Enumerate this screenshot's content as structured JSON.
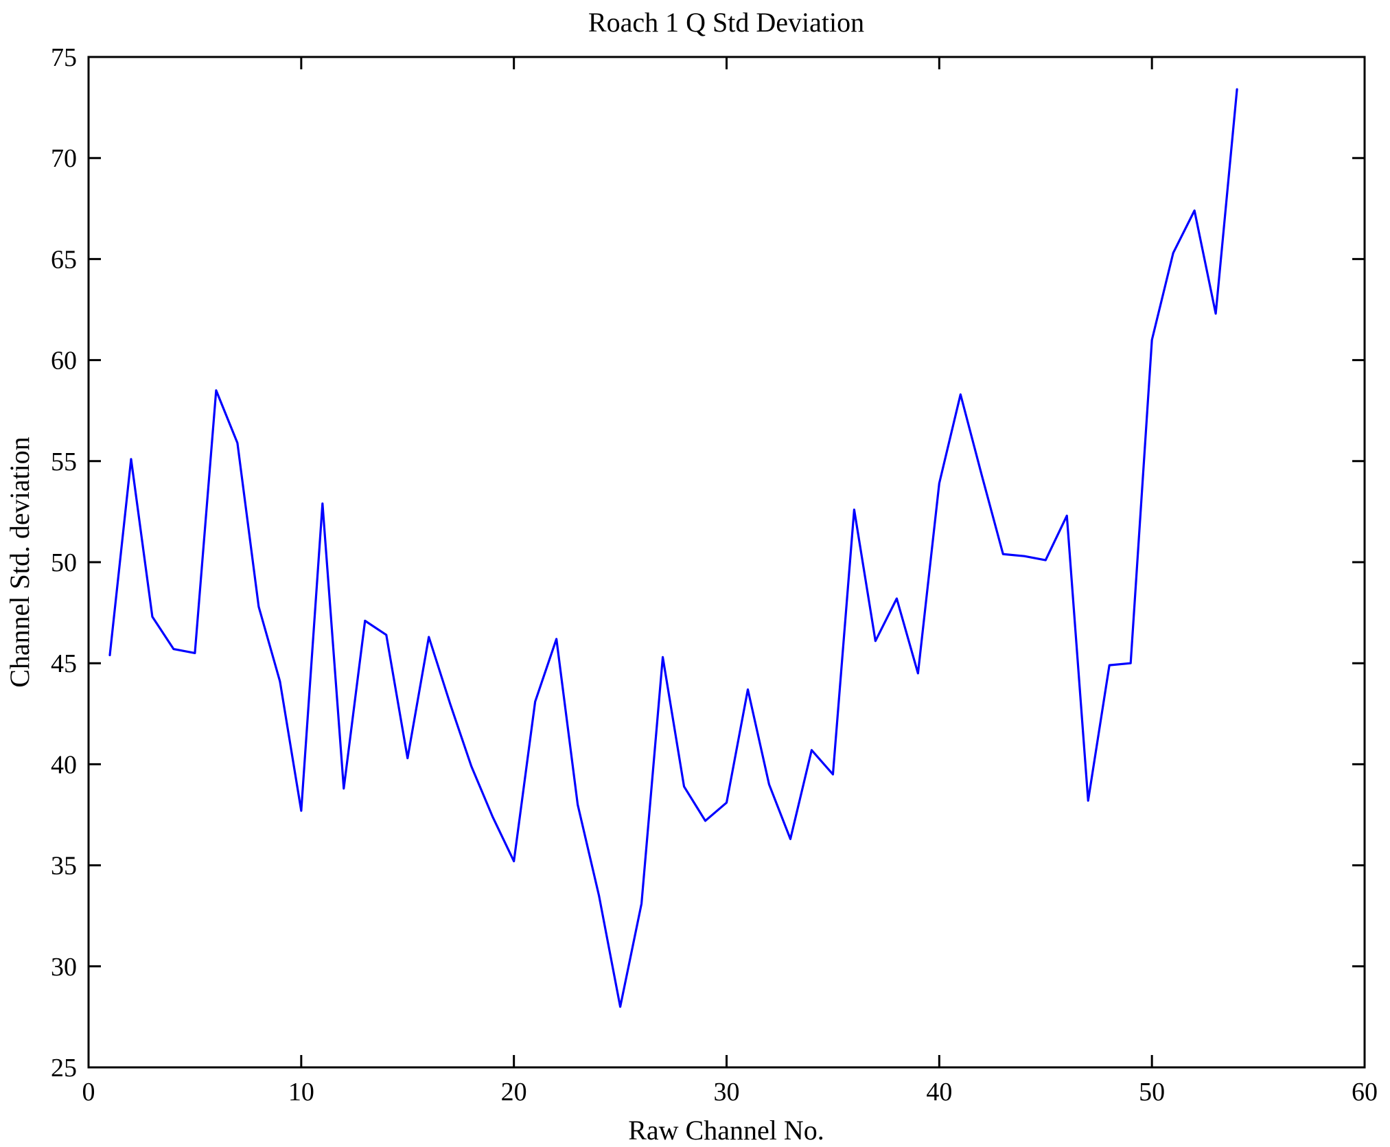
{
  "title": "Roach 1 Q Std Deviation",
  "chart_data": {
    "type": "line",
    "title": "Roach 1 Q Std Deviation",
    "xlabel": "Raw Channel No.",
    "ylabel": "Channel Std. deviation",
    "xlim": [
      0,
      60
    ],
    "ylim": [
      25,
      75
    ],
    "x_ticks": [
      0,
      10,
      20,
      30,
      40,
      50,
      60
    ],
    "y_ticks": [
      25,
      30,
      35,
      40,
      45,
      50,
      55,
      60,
      65,
      70,
      75
    ],
    "grid": false,
    "legend_position": "none",
    "line_color": "#0000FF",
    "axis_color": "#000000",
    "background_color": "#FFFFFF",
    "series_name": "Channel Std. deviation",
    "x": [
      1,
      2,
      3,
      4,
      5,
      6,
      7,
      8,
      9,
      10,
      11,
      12,
      13,
      14,
      15,
      16,
      17,
      18,
      19,
      20,
      21,
      22,
      23,
      24,
      25,
      26,
      27,
      28,
      29,
      30,
      31,
      32,
      33,
      34,
      35,
      36,
      37,
      38,
      39,
      40,
      41,
      42,
      43,
      44,
      45,
      46,
      47,
      48,
      49,
      50,
      51,
      52,
      53,
      54
    ],
    "values": [
      45.4,
      55.1,
      47.3,
      45.7,
      45.5,
      58.5,
      55.9,
      47.8,
      44.1,
      37.7,
      52.9,
      38.8,
      47.1,
      46.4,
      40.3,
      46.3,
      43.0,
      39.9,
      37.4,
      35.2,
      43.1,
      46.2,
      38.0,
      33.5,
      28.0,
      33.1,
      45.3,
      38.9,
      37.2,
      38.1,
      43.7,
      39.0,
      36.3,
      40.7,
      39.5,
      52.6,
      46.1,
      48.2,
      44.5,
      53.9,
      58.3,
      54.3,
      50.4,
      50.3,
      50.1,
      52.3,
      38.2,
      44.9,
      45.0,
      61.0,
      65.3,
      67.4,
      62.3,
      73.4
    ]
  }
}
